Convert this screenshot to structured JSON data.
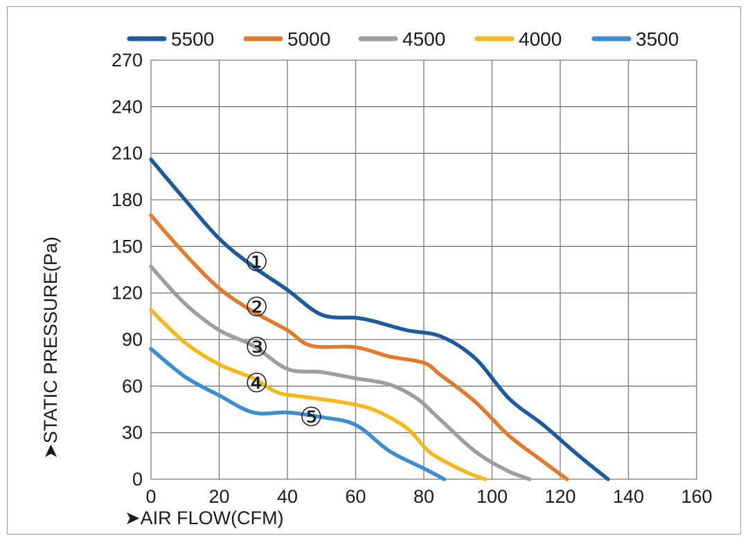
{
  "chart_data": {
    "type": "line",
    "xlabel": "➤AIR FLOW(CFM)",
    "ylabel": "➤STATIC PRESSURE(Pa)",
    "xlim": [
      0,
      160
    ],
    "ylim": [
      0,
      270
    ],
    "xticks": [
      "0",
      "20",
      "40",
      "60",
      "80",
      "100",
      "120",
      "140",
      "160"
    ],
    "yticks": [
      "0",
      "30",
      "60",
      "90",
      "120",
      "150",
      "180",
      "210",
      "240",
      "270"
    ],
    "grid": true,
    "legend_position": "top",
    "series": [
      {
        "name": "5500",
        "color": "#1f5a9c",
        "label": "①",
        "label_at": [
          31,
          140
        ],
        "x": [
          0,
          10,
          20,
          30,
          40,
          50,
          60,
          65,
          75,
          85,
          95,
          105,
          115,
          125,
          134
        ],
        "y": [
          206,
          180,
          155,
          137,
          122,
          106,
          104,
          102,
          96,
          92,
          78,
          52,
          35,
          16,
          0
        ]
      },
      {
        "name": "5000",
        "color": "#e07a2c",
        "label": "②",
        "label_at": [
          31,
          111
        ],
        "x": [
          0,
          10,
          20,
          30,
          40,
          47,
          60,
          70,
          80,
          85,
          95,
          105,
          114,
          122
        ],
        "y": [
          170,
          145,
          123,
          108,
          96,
          86,
          85,
          79,
          75,
          67,
          50,
          28,
          13,
          0
        ]
      },
      {
        "name": "4500",
        "color": "#9e9e9e",
        "label": "③",
        "label_at": [
          31,
          85
        ],
        "x": [
          0,
          10,
          20,
          30,
          40,
          50,
          60,
          70,
          78,
          85,
          95,
          104,
          111
        ],
        "y": [
          137,
          113,
          96,
          86,
          71,
          69,
          65,
          61,
          52,
          38,
          18,
          6,
          0
        ]
      },
      {
        "name": "4000",
        "color": "#f3b81b",
        "label": "④",
        "label_at": [
          31,
          62
        ],
        "x": [
          0,
          10,
          20,
          30,
          37,
          45,
          55,
          65,
          75,
          82,
          92,
          98
        ],
        "y": [
          109,
          88,
          74,
          65,
          56,
          53,
          50,
          45,
          33,
          17,
          5,
          0
        ]
      },
      {
        "name": "3500",
        "color": "#3b8fd0",
        "label": "⑤",
        "label_at": [
          47,
          40
        ],
        "x": [
          0,
          10,
          20,
          30,
          40,
          50,
          60,
          70,
          80,
          86
        ],
        "y": [
          84,
          66,
          54,
          43,
          43,
          40,
          35,
          18,
          7,
          0
        ]
      }
    ]
  }
}
